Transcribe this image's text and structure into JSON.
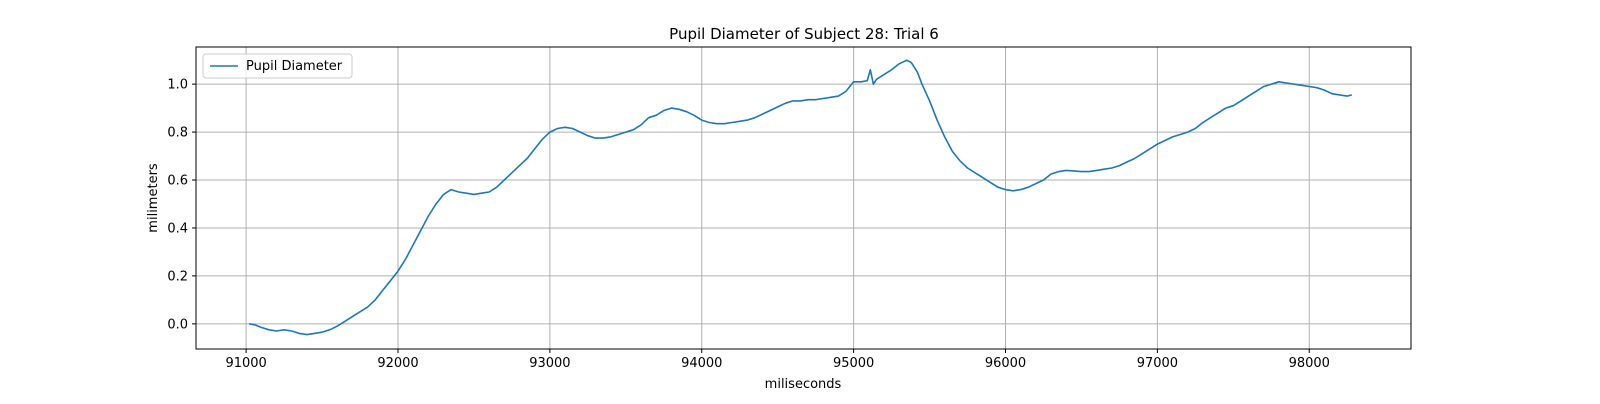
{
  "chart_data": {
    "type": "line",
    "title": "Pupil Diameter of Subject 28: Trial 6",
    "xlabel": "miliseconds",
    "ylabel": "milimeters",
    "xlim": [
      90670,
      98670
    ],
    "ylim": [
      -0.105,
      1.155
    ],
    "x_ticks": [
      91000,
      92000,
      93000,
      94000,
      95000,
      96000,
      97000,
      98000
    ],
    "x_tick_labels": [
      "91000",
      "92000",
      "93000",
      "94000",
      "95000",
      "96000",
      "97000",
      "98000"
    ],
    "y_ticks": [
      0.0,
      0.2,
      0.4,
      0.6,
      0.8,
      1.0
    ],
    "y_tick_labels": [
      "0.0",
      "0.2",
      "0.4",
      "0.6",
      "0.8",
      "1.0"
    ],
    "grid": true,
    "legend_position": "upper-left",
    "series": [
      {
        "name": "Pupil Diameter",
        "color": "#1f77b4",
        "x": [
          91020,
          91060,
          91100,
          91150,
          91200,
          91250,
          91300,
          91350,
          91400,
          91450,
          91500,
          91550,
          91600,
          91650,
          91700,
          91750,
          91800,
          91850,
          91900,
          91950,
          92000,
          92050,
          92100,
          92150,
          92200,
          92250,
          92300,
          92350,
          92400,
          92450,
          92500,
          92550,
          92600,
          92650,
          92700,
          92750,
          92800,
          92850,
          92900,
          92950,
          93000,
          93050,
          93100,
          93150,
          93200,
          93250,
          93300,
          93350,
          93400,
          93450,
          93500,
          93550,
          93600,
          93650,
          93700,
          93750,
          93800,
          93850,
          93900,
          93950,
          94000,
          94050,
          94100,
          94150,
          94200,
          94250,
          94300,
          94350,
          94400,
          94450,
          94500,
          94550,
          94600,
          94650,
          94700,
          94750,
          94800,
          94850,
          94900,
          94950,
          95000,
          95050,
          95090,
          95110,
          95130,
          95150,
          95200,
          95250,
          95300,
          95350,
          95380,
          95420,
          95450,
          95500,
          95550,
          95600,
          95650,
          95700,
          95750,
          95800,
          95850,
          95900,
          95950,
          96000,
          96050,
          96100,
          96150,
          96200,
          96250,
          96300,
          96350,
          96400,
          96450,
          96500,
          96550,
          96600,
          96650,
          96700,
          96750,
          96800,
          96850,
          96900,
          96950,
          97000,
          97050,
          97100,
          97150,
          97200,
          97250,
          97300,
          97350,
          97400,
          97450,
          97500,
          97550,
          97600,
          97650,
          97700,
          97750,
          97800,
          97850,
          97900,
          97950,
          98000,
          98050,
          98100,
          98150,
          98200,
          98250,
          98280
        ],
        "y": [
          0.0,
          -0.005,
          -0.015,
          -0.025,
          -0.03,
          -0.025,
          -0.03,
          -0.04,
          -0.045,
          -0.04,
          -0.035,
          -0.025,
          -0.01,
          0.01,
          0.03,
          0.05,
          0.07,
          0.1,
          0.14,
          0.18,
          0.22,
          0.27,
          0.33,
          0.39,
          0.45,
          0.5,
          0.54,
          0.56,
          0.55,
          0.545,
          0.54,
          0.545,
          0.55,
          0.57,
          0.6,
          0.63,
          0.66,
          0.69,
          0.73,
          0.77,
          0.8,
          0.815,
          0.82,
          0.815,
          0.8,
          0.785,
          0.775,
          0.775,
          0.78,
          0.79,
          0.8,
          0.81,
          0.83,
          0.86,
          0.87,
          0.89,
          0.9,
          0.895,
          0.885,
          0.87,
          0.85,
          0.84,
          0.835,
          0.835,
          0.84,
          0.845,
          0.85,
          0.86,
          0.875,
          0.89,
          0.905,
          0.92,
          0.93,
          0.93,
          0.935,
          0.935,
          0.94,
          0.945,
          0.95,
          0.97,
          1.01,
          1.01,
          1.015,
          1.06,
          1.0,
          1.02,
          1.04,
          1.06,
          1.085,
          1.1,
          1.09,
          1.05,
          1.0,
          0.93,
          0.85,
          0.78,
          0.72,
          0.68,
          0.65,
          0.63,
          0.61,
          0.59,
          0.57,
          0.56,
          0.555,
          0.56,
          0.57,
          0.585,
          0.6,
          0.625,
          0.635,
          0.64,
          0.638,
          0.635,
          0.635,
          0.64,
          0.645,
          0.65,
          0.66,
          0.675,
          0.69,
          0.71,
          0.73,
          0.75,
          0.765,
          0.78,
          0.79,
          0.8,
          0.815,
          0.84,
          0.86,
          0.88,
          0.9,
          0.91,
          0.93,
          0.95,
          0.97,
          0.99,
          1.0,
          1.01,
          1.005,
          1.0,
          0.995,
          0.99,
          0.985,
          0.975,
          0.96,
          0.955,
          0.95,
          0.955
        ]
      }
    ]
  }
}
